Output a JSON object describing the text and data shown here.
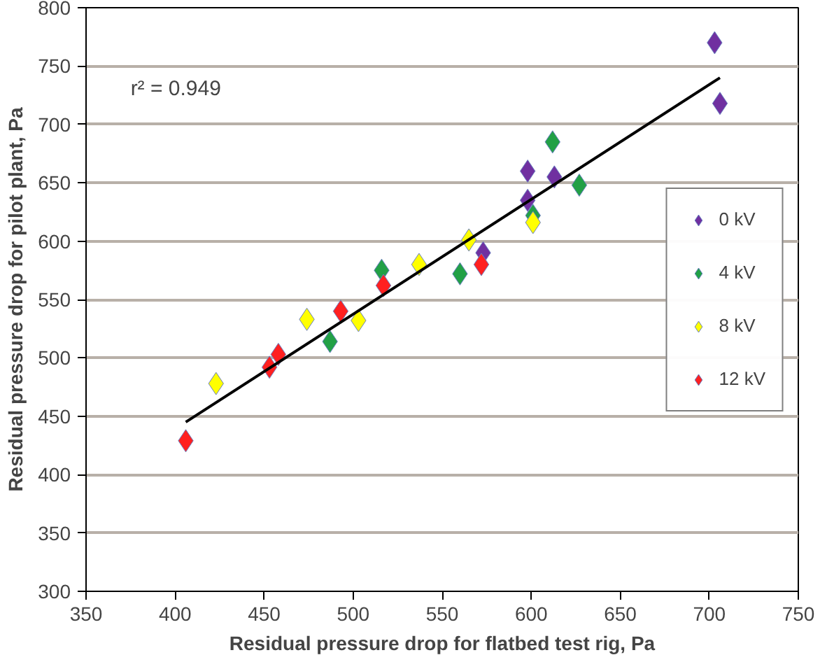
{
  "chart_data": {
    "type": "scatter",
    "xlabel": "Residual pressure drop for flatbed test rig, Pa",
    "ylabel": "Residual pressure drop for pilot plant, Pa",
    "annotations": [
      "r² = 0.949"
    ],
    "xlim": [
      350,
      750
    ],
    "xticks": [
      350,
      400,
      450,
      500,
      550,
      600,
      650,
      700,
      750
    ],
    "ylim": [
      300,
      800
    ],
    "yticks": [
      300,
      350,
      400,
      450,
      500,
      550,
      600,
      650,
      700,
      750,
      800
    ],
    "grid": "y",
    "legend": "right",
    "marker": "diamond",
    "series": [
      {
        "name": "0 kV",
        "color": "#7030a0",
        "x": [
          703,
          706,
          598,
          613,
          598,
          573
        ],
        "values": [
          770,
          718,
          660,
          655,
          635,
          590
        ]
      },
      {
        "name": "4 kV",
        "color": "#22a046",
        "x": [
          612,
          627,
          601,
          560,
          516,
          487
        ],
        "values": [
          685,
          648,
          622,
          572,
          575,
          514
        ]
      },
      {
        "name": "8 kV",
        "color": "#ffff00",
        "x": [
          423,
          474,
          503,
          537,
          565,
          601
        ],
        "values": [
          478,
          533,
          532,
          580,
          601,
          616
        ]
      },
      {
        "name": "12 kV",
        "color": "#ff2020",
        "x": [
          406,
          453,
          458,
          493,
          517,
          572
        ],
        "values": [
          429,
          492,
          503,
          540,
          562,
          580
        ]
      },
      {
        "type": "line",
        "marker": "none",
        "color": "#000000",
        "x": [
          406,
          706
        ],
        "values": [
          445,
          740
        ]
      }
    ]
  }
}
